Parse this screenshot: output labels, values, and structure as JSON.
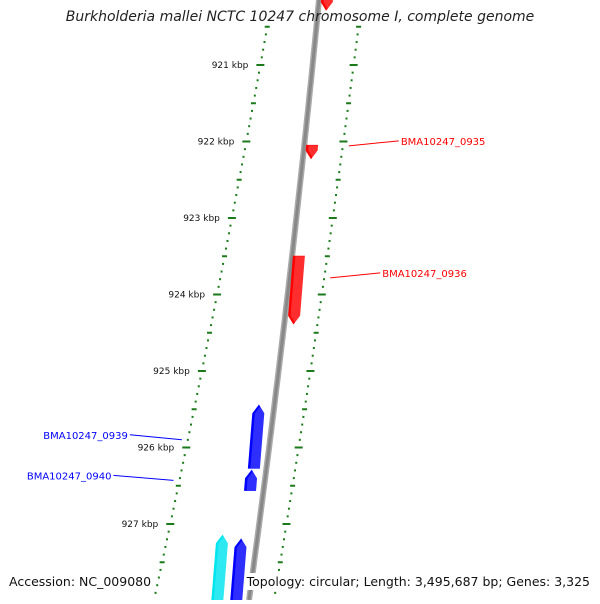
{
  "title": "Burkholderia mallei NCTC 10247 chromosome I, complete genome",
  "footer": {
    "accession": "Accession: NC_009080",
    "summary": "Topology: circular; Length: 3,495,687 bp; Genes: 3,325"
  },
  "ruler": {
    "ticks": [
      {
        "label": "921 kbp",
        "value": 921
      },
      {
        "label": "922 kbp",
        "value": 922
      },
      {
        "label": "923 kbp",
        "value": 923
      },
      {
        "label": "924 kbp",
        "value": 924
      },
      {
        "label": "925 kbp",
        "value": 925
      },
      {
        "label": "926 kbp",
        "value": 926
      },
      {
        "label": "927 kbp",
        "value": 927
      }
    ]
  },
  "strand_colors": {
    "forward": "#ff0000",
    "reverse": "#0000ff",
    "other": "#00e5ee",
    "backbone": "#888888",
    "ruler": "#1a7a1a"
  },
  "genes": [
    {
      "label": "",
      "strand": "forward",
      "start": 920.1,
      "end": 920.28
    },
    {
      "label": "BMA10247_0935",
      "strand": "forward",
      "start": 922.05,
      "end": 922.22
    },
    {
      "label": "BMA10247_0936",
      "strand": "forward",
      "start": 923.5,
      "end": 924.38
    },
    {
      "label": "BMA10247_0939",
      "strand": "reverse",
      "start": 925.45,
      "end": 926.27
    },
    {
      "label": "BMA10247_0940",
      "strand": "reverse",
      "start": 926.3,
      "end": 926.56
    },
    {
      "label": "",
      "strand": "reverse",
      "start": 927.2,
      "end": 928.2
    },
    {
      "label": "",
      "strand": "other",
      "start": 927.15,
      "end": 928.2
    }
  ]
}
